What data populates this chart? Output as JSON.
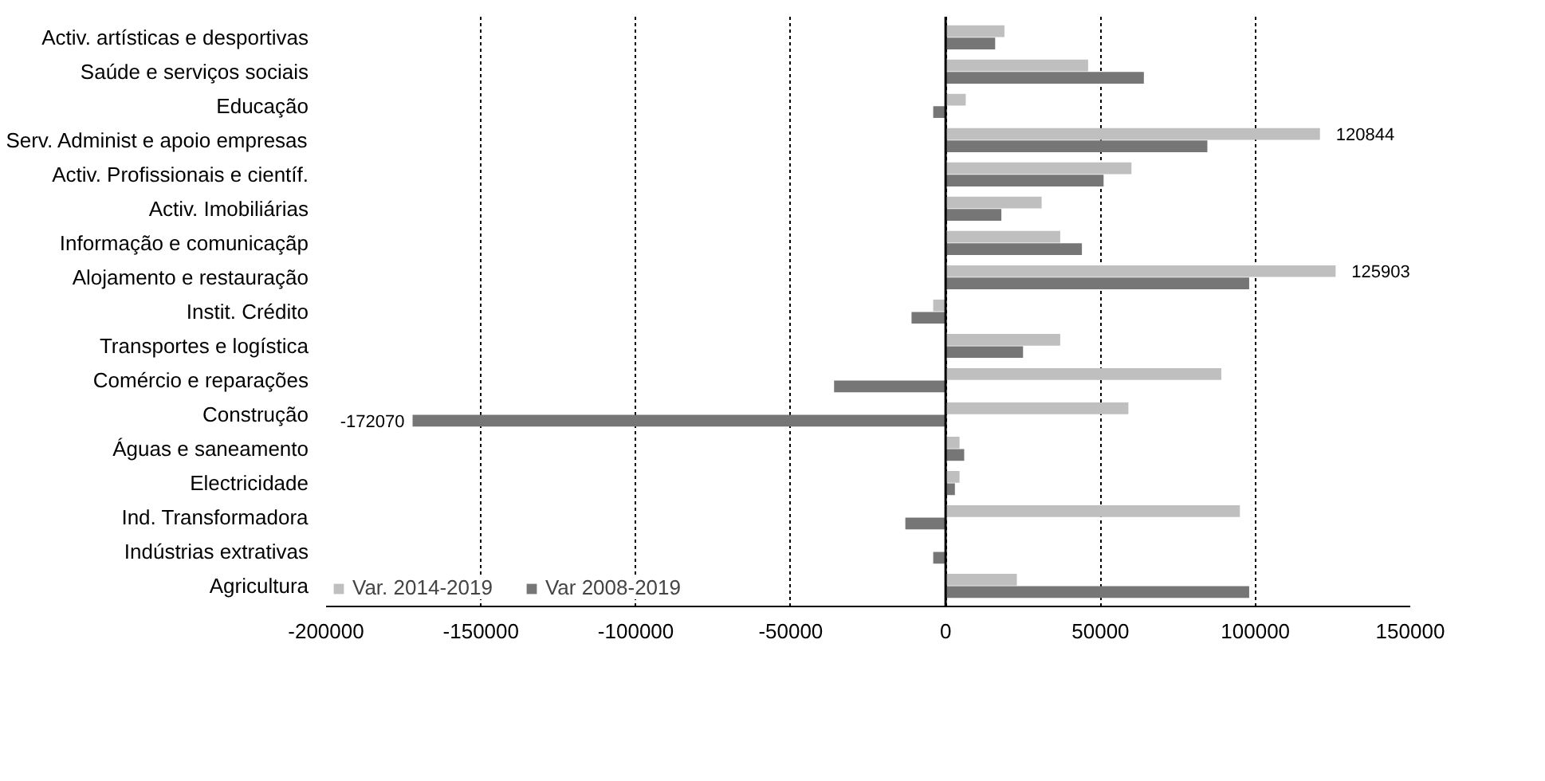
{
  "chart_data": {
    "type": "bar",
    "orientation": "horizontal",
    "categories": [
      "Activ. artísticas e desportivas",
      "Saúde e serviços sociais",
      "Educação",
      "Serv. Administ e apoio empresas",
      "Activ. Profissionais e científ.",
      "Activ. Imobiliárias",
      "Informação e comunicaçãp",
      "Alojamento e restauração",
      "Instit. Crédito",
      "Transportes e logística",
      "Comércio e reparações",
      "Construção",
      "Águas e saneamento",
      "Electricidade",
      "Ind. Transformadora",
      "Indústrias extrativas",
      "Agricultura"
    ],
    "series": [
      {
        "name": "Var. 2014-2019",
        "color": "#bfbfbf",
        "values": [
          19000,
          46000,
          6500,
          120844,
          60000,
          31000,
          37000,
          125903,
          -4000,
          37000,
          89000,
          59000,
          4500,
          4500,
          95000,
          null,
          23000
        ],
        "value_labels": [
          null,
          null,
          null,
          "120844",
          null,
          null,
          null,
          "125903",
          null,
          null,
          null,
          null,
          null,
          null,
          null,
          null,
          null
        ]
      },
      {
        "name": "Var 2008-2019",
        "color": "#767676",
        "values": [
          16000,
          64000,
          -4000,
          84500,
          51000,
          18000,
          44000,
          98000,
          -11000,
          25000,
          -36000,
          -172070,
          6000,
          3000,
          -13000,
          -4000,
          98000
        ],
        "value_labels": [
          null,
          null,
          null,
          null,
          null,
          null,
          null,
          null,
          null,
          null,
          null,
          "-172070",
          null,
          null,
          null,
          null,
          null
        ]
      }
    ],
    "xlim": [
      -200000,
      150000
    ],
    "xticks": [
      -200000,
      -150000,
      -100000,
      -50000,
      0,
      50000,
      100000,
      150000
    ],
    "grid": "x",
    "legend": "bottom"
  }
}
